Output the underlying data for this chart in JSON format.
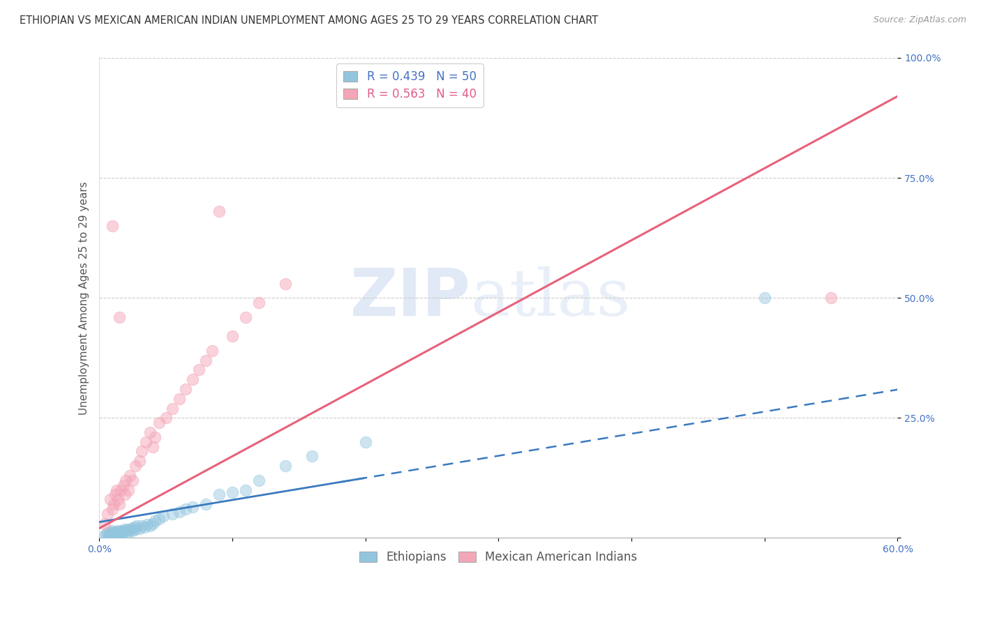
{
  "title": "ETHIOPIAN VS MEXICAN AMERICAN INDIAN UNEMPLOYMENT AMONG AGES 25 TO 29 YEARS CORRELATION CHART",
  "source": "Source: ZipAtlas.com",
  "ylabel": "Unemployment Among Ages 25 to 29 years",
  "xlim": [
    0.0,
    0.6
  ],
  "ylim": [
    0.0,
    1.0
  ],
  "xtick_vals": [
    0.0,
    0.1,
    0.2,
    0.3,
    0.4,
    0.5,
    0.6
  ],
  "xticklabels": [
    "0.0%",
    "",
    "",
    "",
    "",
    "",
    "60.0%"
  ],
  "ytick_vals": [
    0.0,
    0.25,
    0.5,
    0.75,
    1.0
  ],
  "yticklabels": [
    "",
    "25.0%",
    "50.0%",
    "75.0%",
    "100.0%"
  ],
  "legend_labels": [
    "Ethiopians",
    "Mexican American Indians"
  ],
  "blue_R": 0.439,
  "blue_N": 50,
  "pink_R": 0.563,
  "pink_N": 40,
  "blue_color": "#92c5de",
  "pink_color": "#f4a6b8",
  "blue_line_color": "#3a7abf",
  "pink_line_color": "#e8607a",
  "watermark_zip": "ZIP",
  "watermark_atlas": "atlas",
  "background_color": "#ffffff",
  "blue_scatter_x": [
    0.004,
    0.005,
    0.006,
    0.007,
    0.008,
    0.008,
    0.009,
    0.01,
    0.01,
    0.011,
    0.012,
    0.013,
    0.014,
    0.015,
    0.015,
    0.016,
    0.017,
    0.018,
    0.019,
    0.02,
    0.021,
    0.022,
    0.023,
    0.024,
    0.025,
    0.026,
    0.027,
    0.028,
    0.03,
    0.032,
    0.034,
    0.036,
    0.038,
    0.04,
    0.042,
    0.045,
    0.048,
    0.055,
    0.06,
    0.065,
    0.07,
    0.08,
    0.09,
    0.1,
    0.11,
    0.12,
    0.14,
    0.16,
    0.2,
    0.5
  ],
  "blue_scatter_y": [
    0.005,
    0.008,
    0.01,
    0.005,
    0.008,
    0.012,
    0.007,
    0.01,
    0.015,
    0.008,
    0.012,
    0.01,
    0.015,
    0.008,
    0.013,
    0.01,
    0.015,
    0.012,
    0.018,
    0.015,
    0.01,
    0.018,
    0.015,
    0.02,
    0.015,
    0.022,
    0.018,
    0.025,
    0.02,
    0.025,
    0.022,
    0.028,
    0.025,
    0.03,
    0.035,
    0.04,
    0.045,
    0.05,
    0.055,
    0.06,
    0.065,
    0.07,
    0.09,
    0.095,
    0.1,
    0.12,
    0.15,
    0.17,
    0.2,
    0.5
  ],
  "pink_scatter_x": [
    0.004,
    0.006,
    0.008,
    0.01,
    0.011,
    0.012,
    0.013,
    0.014,
    0.015,
    0.016,
    0.018,
    0.019,
    0.02,
    0.022,
    0.023,
    0.025,
    0.027,
    0.03,
    0.032,
    0.035,
    0.038,
    0.04,
    0.042,
    0.045,
    0.05,
    0.055,
    0.06,
    0.065,
    0.07,
    0.075,
    0.08,
    0.085,
    0.09,
    0.1,
    0.11,
    0.12,
    0.14,
    0.55,
    0.01,
    0.015
  ],
  "pink_scatter_y": [
    0.03,
    0.05,
    0.08,
    0.06,
    0.07,
    0.09,
    0.1,
    0.08,
    0.07,
    0.1,
    0.11,
    0.09,
    0.12,
    0.1,
    0.13,
    0.12,
    0.15,
    0.16,
    0.18,
    0.2,
    0.22,
    0.19,
    0.21,
    0.24,
    0.25,
    0.27,
    0.29,
    0.31,
    0.33,
    0.35,
    0.37,
    0.39,
    0.68,
    0.42,
    0.46,
    0.49,
    0.53,
    0.5,
    0.65,
    0.46
  ],
  "title_fontsize": 10.5,
  "source_fontsize": 9,
  "axis_label_fontsize": 11,
  "tick_fontsize": 10,
  "legend_fontsize": 12
}
